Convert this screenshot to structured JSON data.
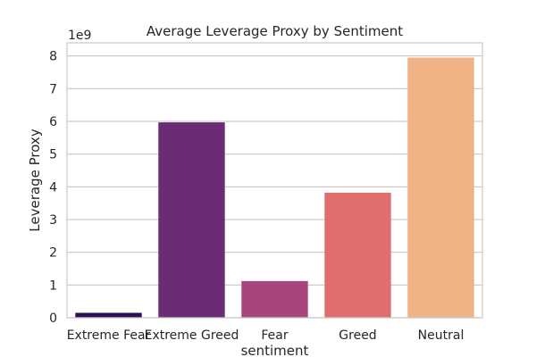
{
  "chart_data": {
    "type": "bar",
    "title": "Average Leverage Proxy by Sentiment",
    "xlabel": "sentiment",
    "ylabel": "Leverage Proxy",
    "y_offset_label": "1e9",
    "y_scale": 1000000000,
    "categories": [
      "Extreme Fear",
      "Extreme Greed",
      "Fear",
      "Greed",
      "Neutral"
    ],
    "values": [
      150000000,
      5970000000,
      1120000000,
      3820000000,
      7950000000
    ],
    "colors": [
      "#2c1255",
      "#6a2c75",
      "#a8457b",
      "#e06e6f",
      "#f0b385"
    ],
    "ylim": [
      0,
      8400000000
    ],
    "yticks": [
      0,
      1,
      2,
      3,
      4,
      5,
      6,
      7,
      8
    ],
    "grid": true,
    "legend": "none"
  }
}
